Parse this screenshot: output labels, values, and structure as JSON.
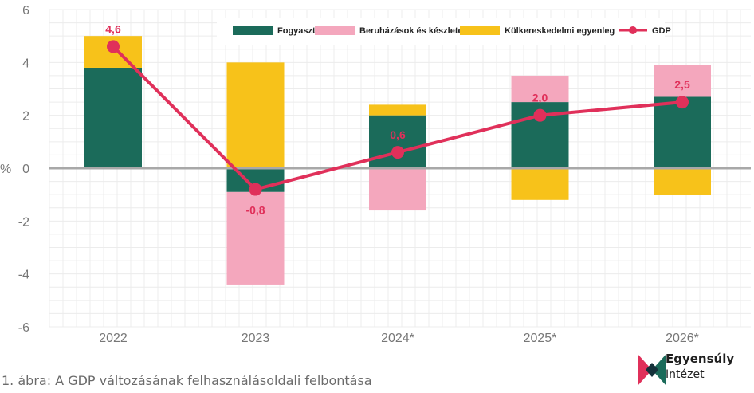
{
  "chart_data": {
    "type": "bar",
    "stacked": true,
    "categories": [
      "2022",
      "2023",
      "2024*",
      "2025*",
      "2026*"
    ],
    "ylabel": "%",
    "ylim": [
      -6,
      6
    ],
    "yticks": [
      6,
      4,
      2,
      0,
      -2,
      -4,
      -6
    ],
    "grid": true,
    "legend": "top",
    "series": [
      {
        "name": "Fogyasztás",
        "color": "#1b6b5a",
        "values": [
          3.8,
          -0.9,
          2.0,
          2.5,
          2.7
        ]
      },
      {
        "name": "Beruházások és készletek",
        "color": "#f4a7bd",
        "values": [
          0.0,
          -3.5,
          -1.6,
          1.0,
          1.2
        ]
      },
      {
        "name": "Külkereskedelmi egyenleg",
        "color": "#f7c21a",
        "values": [
          1.2,
          4.0,
          0.4,
          -1.2,
          -1.0
        ]
      }
    ],
    "line": {
      "name": "GDP",
      "color": "#e0305a",
      "values": [
        4.6,
        -0.8,
        0.6,
        2.0,
        2.5
      ],
      "labels": [
        "4,6",
        "-0,8",
        "0,6",
        "2,0",
        "2,5"
      ]
    }
  },
  "caption": "1. ábra: A GDP változásának felhasználásoldali felbontása",
  "logo": {
    "line1": "Egyensúly",
    "line2": "Intézet"
  }
}
